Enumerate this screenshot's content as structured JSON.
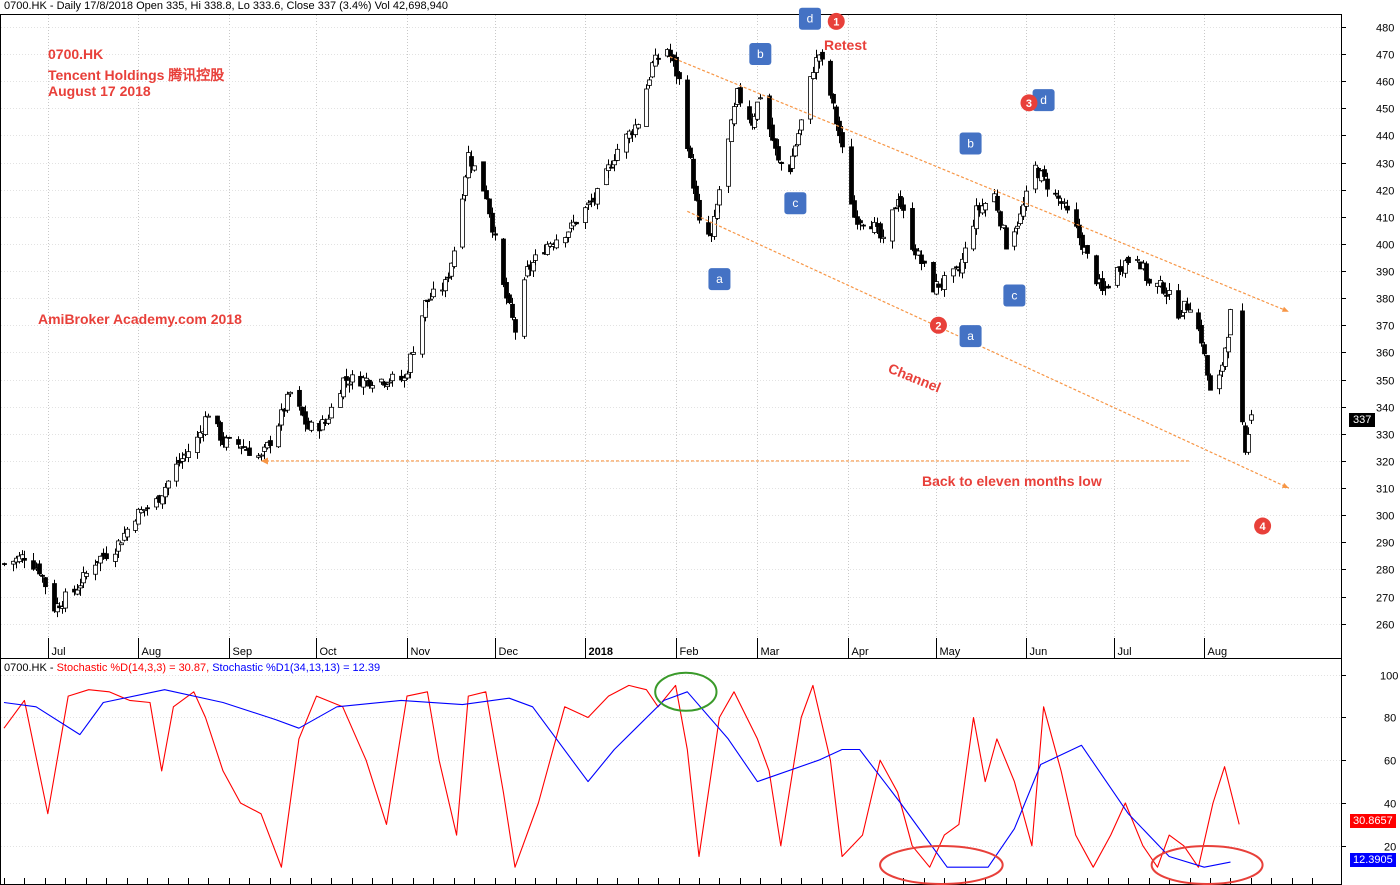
{
  "header": {
    "price_line": "0700.HK - Daily 17/8/2018 Open 335, Hi 338.8, Lo 333.6, Close 337 (3.4%) Vol 42,698,940",
    "indicator_prefix": "0700.HK - ",
    "indicator_k": "Stochastic %D(14,3,3) = 30.87,",
    "indicator_d": "Stochastic %D1(34,13,13) = 12.39"
  },
  "annotations": {
    "ticker": "0700.HK",
    "company": "Tencent Holdings 腾讯控股",
    "date": "August 17 2018",
    "watermark": "AmiBroker Academy.com  2018",
    "retest": "Retest",
    "channel": "Channel",
    "low_note": "Back to eleven months low"
  },
  "tags": {
    "last_price": "337",
    "stoch_k_last": "30.8657",
    "stoch_d_last": "12.3905"
  },
  "wave_labels": [
    {
      "text": "a",
      "date": "2018-02-16",
      "price": 387
    },
    {
      "text": "b",
      "date": "2018-03-02",
      "price": 470
    },
    {
      "text": "c",
      "date": "2018-03-14",
      "price": 415
    },
    {
      "text": "d",
      "date": "2018-03-19",
      "price": 483
    },
    {
      "text": "b",
      "date": "2018-05-13",
      "price": 437
    },
    {
      "text": "c",
      "date": "2018-05-28",
      "price": 381
    },
    {
      "text": "a",
      "date": "2018-05-13",
      "price": 366
    },
    {
      "text": "d",
      "date": "2018-06-07",
      "price": 453
    }
  ],
  "wave_counts": [
    {
      "text": "1",
      "date": "2018-03-28",
      "price": 482
    },
    {
      "text": "2",
      "date": "2018-05-02",
      "price": 370
    },
    {
      "text": "3",
      "date": "2018-06-02",
      "price": 452
    },
    {
      "text": "4",
      "date": "2018-08-21",
      "price": 296
    }
  ],
  "colors": {
    "up_candle": "#ffffff",
    "down_candle": "#000000",
    "stoch_k": "#ff0000",
    "stoch_d": "#0000ff",
    "trendline": "#f79646",
    "annotation": "#e8403a",
    "wave_label_bg": "#4472c4",
    "circle_red": "#e8403a",
    "circle_green": "#3a9a2a"
  },
  "chart_data": [
    {
      "type": "candlestick",
      "title": "0700.HK - Daily 17/8/2018",
      "x_ticks": [
        "Jul",
        "Aug",
        "Sep",
        "Oct",
        "Nov",
        "Dec",
        "2018",
        "Feb",
        "Mar",
        "Apr",
        "May",
        "Jun",
        "Jul",
        "Aug"
      ],
      "x_tick_dates": [
        "2017-07-01",
        "2017-08-01",
        "2017-09-01",
        "2017-10-01",
        "2017-11-01",
        "2017-12-01",
        "2018-01-01",
        "2018-02-01",
        "2018-03-01",
        "2018-04-01",
        "2018-05-01",
        "2018-06-01",
        "2018-07-01",
        "2018-08-01"
      ],
      "y_ticks": [
        260,
        270,
        280,
        290,
        300,
        310,
        320,
        330,
        340,
        350,
        360,
        370,
        380,
        390,
        400,
        410,
        420,
        430,
        440,
        450,
        460,
        470,
        480
      ],
      "ylim": [
        254,
        484
      ],
      "xlim": [
        "2017-06-16",
        "2018-09-10"
      ],
      "grid": true,
      "price_path": [
        [
          "2017-06-16",
          282
        ],
        [
          "2017-06-23",
          285
        ],
        [
          "2017-06-28",
          280
        ],
        [
          "2017-07-03",
          266
        ],
        [
          "2017-07-10",
          272
        ],
        [
          "2017-07-17",
          283
        ],
        [
          "2017-07-24",
          288
        ],
        [
          "2017-07-31",
          300
        ],
        [
          "2017-08-07",
          305
        ],
        [
          "2017-08-14",
          318
        ],
        [
          "2017-08-21",
          328
        ],
        [
          "2017-08-25",
          338
        ],
        [
          "2017-08-30",
          327
        ],
        [
          "2017-09-05",
          326
        ],
        [
          "2017-09-12",
          321
        ],
        [
          "2017-09-18",
          334
        ],
        [
          "2017-09-22",
          345
        ],
        [
          "2017-09-28",
          332
        ],
        [
          "2017-10-04",
          334
        ],
        [
          "2017-10-10",
          350
        ],
        [
          "2017-10-16",
          350
        ],
        [
          "2017-10-24",
          350
        ],
        [
          "2017-10-31",
          350
        ],
        [
          "2017-11-07",
          378
        ],
        [
          "2017-11-14",
          385
        ],
        [
          "2017-11-17",
          398
        ],
        [
          "2017-11-22",
          433
        ],
        [
          "2017-11-28",
          418
        ],
        [
          "2017-12-04",
          384
        ],
        [
          "2017-12-08",
          368
        ],
        [
          "2017-12-12",
          390
        ],
        [
          "2017-12-19",
          400
        ],
        [
          "2017-12-27",
          406
        ],
        [
          "2018-01-05",
          418
        ],
        [
          "2018-01-12",
          435
        ],
        [
          "2018-01-19",
          445
        ],
        [
          "2018-01-24",
          466
        ],
        [
          "2018-01-29",
          472
        ],
        [
          "2018-02-02",
          460
        ],
        [
          "2018-02-06",
          430
        ],
        [
          "2018-02-09",
          407
        ],
        [
          "2018-02-13",
          402
        ],
        [
          "2018-02-16",
          420
        ],
        [
          "2018-02-22",
          455
        ],
        [
          "2018-02-27",
          445
        ],
        [
          "2018-03-02",
          455
        ],
        [
          "2018-03-08",
          430
        ],
        [
          "2018-03-12",
          428
        ],
        [
          "2018-03-16",
          445
        ],
        [
          "2018-03-20",
          465
        ],
        [
          "2018-03-22",
          470
        ],
        [
          "2018-03-26",
          455
        ],
        [
          "2018-03-29",
          440
        ],
        [
          "2018-04-03",
          410
        ],
        [
          "2018-04-09",
          408
        ],
        [
          "2018-04-13",
          400
        ],
        [
          "2018-04-18",
          418
        ],
        [
          "2018-04-23",
          400
        ],
        [
          "2018-04-30",
          384
        ],
        [
          "2018-05-04",
          386
        ],
        [
          "2018-05-09",
          390
        ],
        [
          "2018-05-15",
          412
        ],
        [
          "2018-05-21",
          418
        ],
        [
          "2018-05-25",
          400
        ],
        [
          "2018-05-30",
          410
        ],
        [
          "2018-06-04",
          428
        ],
        [
          "2018-06-08",
          422
        ],
        [
          "2018-06-13",
          415
        ],
        [
          "2018-06-18",
          405
        ],
        [
          "2018-06-22",
          395
        ],
        [
          "2018-06-27",
          382
        ],
        [
          "2018-07-03",
          392
        ],
        [
          "2018-07-09",
          396
        ],
        [
          "2018-07-13",
          385
        ],
        [
          "2018-07-18",
          384
        ],
        [
          "2018-07-23",
          375
        ],
        [
          "2018-07-27",
          378
        ],
        [
          "2018-07-31",
          365
        ],
        [
          "2018-08-03",
          345
        ],
        [
          "2018-08-06",
          350
        ],
        [
          "2018-08-08",
          362
        ],
        [
          "2018-08-10",
          374
        ],
        [
          "2018-08-13",
          343
        ],
        [
          "2018-08-15",
          321
        ],
        [
          "2018-08-17",
          337
        ]
      ],
      "last_candle": {
        "date": "2018-08-17",
        "open": 335,
        "high": 338.8,
        "low": 333.6,
        "close": 337,
        "volume": 42698940,
        "change_pct": 3.4
      },
      "trendlines": [
        {
          "name": "upper channel",
          "from": [
            "2018-01-30",
            469
          ],
          "to": [
            "2018-08-30",
            375
          ]
        },
        {
          "name": "lower channel",
          "from": [
            "2018-02-05",
            412
          ],
          "to": [
            "2018-08-30",
            310
          ]
        },
        {
          "name": "eleven months low",
          "from": [
            "2017-09-12",
            320
          ],
          "to": [
            "2018-07-27",
            320
          ]
        }
      ]
    },
    {
      "type": "line",
      "title": "0700.HK - Stochastic",
      "y_ticks": [
        20,
        40,
        60,
        80,
        100
      ],
      "ylim": [
        4,
        105
      ],
      "series": [
        {
          "name": "Stochastic %D(14,3,3)",
          "last": 30.87,
          "path": [
            [
              "2017-06-16",
              75
            ],
            [
              "2017-06-23",
              88
            ],
            [
              "2017-07-01",
              35
            ],
            [
              "2017-07-08",
              90
            ],
            [
              "2017-07-15",
              93
            ],
            [
              "2017-07-22",
              92
            ],
            [
              "2017-07-29",
              88
            ],
            [
              "2017-08-05",
              87
            ],
            [
              "2017-08-09",
              55
            ],
            [
              "2017-08-13",
              85
            ],
            [
              "2017-08-20",
              92
            ],
            [
              "2017-08-24",
              80
            ],
            [
              "2017-08-30",
              55
            ],
            [
              "2017-09-05",
              40
            ],
            [
              "2017-09-12",
              35
            ],
            [
              "2017-09-19",
              10
            ],
            [
              "2017-09-25",
              70
            ],
            [
              "2017-10-01",
              90
            ],
            [
              "2017-10-10",
              85
            ],
            [
              "2017-10-18",
              60
            ],
            [
              "2017-10-25",
              30
            ],
            [
              "2017-11-01",
              90
            ],
            [
              "2017-11-08",
              92
            ],
            [
              "2017-11-12",
              60
            ],
            [
              "2017-11-18",
              25
            ],
            [
              "2017-11-22",
              90
            ],
            [
              "2017-11-28",
              92
            ],
            [
              "2017-12-04",
              45
            ],
            [
              "2017-12-08",
              10
            ],
            [
              "2017-12-16",
              40
            ],
            [
              "2017-12-25",
              85
            ],
            [
              "2018-01-02",
              80
            ],
            [
              "2018-01-09",
              90
            ],
            [
              "2018-01-16",
              95
            ],
            [
              "2018-01-22",
              93
            ],
            [
              "2018-01-26",
              85
            ],
            [
              "2018-02-01",
              95
            ],
            [
              "2018-02-05",
              65
            ],
            [
              "2018-02-09",
              15
            ],
            [
              "2018-02-16",
              80
            ],
            [
              "2018-02-21",
              92
            ],
            [
              "2018-03-01",
              70
            ],
            [
              "2018-03-05",
              55
            ],
            [
              "2018-03-09",
              20
            ],
            [
              "2018-03-16",
              80
            ],
            [
              "2018-03-20",
              95
            ],
            [
              "2018-03-26",
              60
            ],
            [
              "2018-03-30",
              15
            ],
            [
              "2018-04-06",
              25
            ],
            [
              "2018-04-12",
              60
            ],
            [
              "2018-04-18",
              45
            ],
            [
              "2018-04-23",
              20
            ],
            [
              "2018-04-29",
              10
            ],
            [
              "2018-05-04",
              25
            ],
            [
              "2018-05-09",
              30
            ],
            [
              "2018-05-14",
              80
            ],
            [
              "2018-05-18",
              50
            ],
            [
              "2018-05-22",
              70
            ],
            [
              "2018-05-28",
              50
            ],
            [
              "2018-06-03",
              20
            ],
            [
              "2018-06-07",
              85
            ],
            [
              "2018-06-13",
              55
            ],
            [
              "2018-06-18",
              25
            ],
            [
              "2018-06-24",
              10
            ],
            [
              "2018-06-30",
              25
            ],
            [
              "2018-07-05",
              40
            ],
            [
              "2018-07-11",
              20
            ],
            [
              "2018-07-16",
              10
            ],
            [
              "2018-07-20",
              25
            ],
            [
              "2018-07-25",
              20
            ],
            [
              "2018-07-30",
              10
            ],
            [
              "2018-08-04",
              40
            ],
            [
              "2018-08-08",
              57
            ],
            [
              "2018-08-13",
              30
            ]
          ]
        },
        {
          "name": "Stochastic %D1(34,13,13)",
          "last": 12.39,
          "path": [
            [
              "2017-06-16",
              87
            ],
            [
              "2017-06-27",
              85
            ],
            [
              "2017-07-12",
              72
            ],
            [
              "2017-07-20",
              87
            ],
            [
              "2017-08-10",
              93
            ],
            [
              "2017-08-30",
              87
            ],
            [
              "2017-09-17",
              79
            ],
            [
              "2017-09-25",
              75
            ],
            [
              "2017-10-08",
              85
            ],
            [
              "2017-10-30",
              88
            ],
            [
              "2017-11-20",
              86
            ],
            [
              "2017-12-06",
              89
            ],
            [
              "2017-12-14",
              85
            ],
            [
              "2018-01-02",
              50
            ],
            [
              "2018-01-11",
              65
            ],
            [
              "2018-01-28",
              88
            ],
            [
              "2018-02-05",
              92
            ],
            [
              "2018-02-19",
              70
            ],
            [
              "2018-03-01",
              50
            ],
            [
              "2018-03-22",
              60
            ],
            [
              "2018-03-30",
              65
            ],
            [
              "2018-04-05",
              65
            ],
            [
              "2018-04-19",
              40
            ],
            [
              "2018-05-05",
              10
            ],
            [
              "2018-05-19",
              10
            ],
            [
              "2018-05-28",
              28
            ],
            [
              "2018-06-06",
              58
            ],
            [
              "2018-06-20",
              67
            ],
            [
              "2018-07-06",
              35
            ],
            [
              "2018-07-20",
              15
            ],
            [
              "2018-08-01",
              10
            ],
            [
              "2018-08-10",
              12.39
            ]
          ]
        }
      ],
      "highlight_circles": [
        {
          "color": "green",
          "from": "2018-01-25",
          "to": "2018-02-15",
          "y": 92
        },
        {
          "color": "red",
          "from": "2018-04-12",
          "to": "2018-05-24",
          "y": 11
        },
        {
          "color": "red",
          "from": "2018-07-14",
          "to": "2018-08-21",
          "y": 11
        }
      ]
    }
  ]
}
